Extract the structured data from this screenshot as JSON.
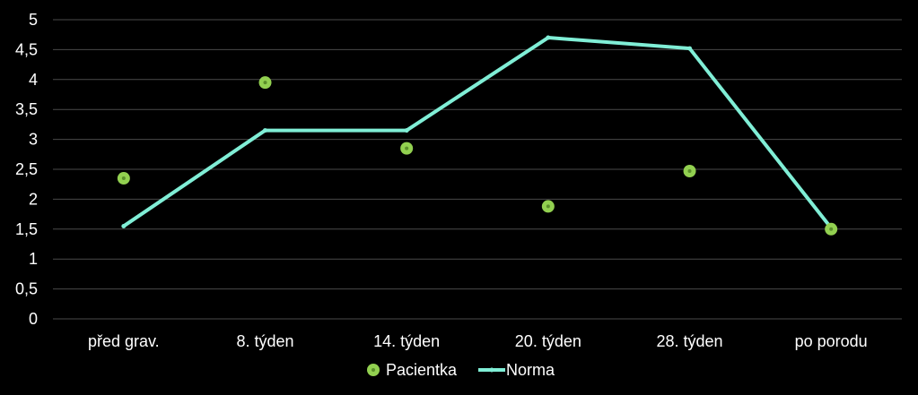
{
  "chart_data": {
    "type": "line",
    "categories": [
      "před grav.",
      "8. týden",
      "14. týden",
      "20. týden",
      "28. týden",
      "po porodu"
    ],
    "ylim": [
      0,
      5
    ],
    "y_ticks": [
      0,
      0.5,
      1,
      1.5,
      2,
      2.5,
      3,
      3.5,
      4,
      4.5,
      5
    ],
    "y_tick_labels": [
      "0",
      "0,5",
      "1",
      "1,5",
      "2",
      "2,5",
      "3",
      "3,5",
      "4",
      "4,5",
      "5"
    ],
    "grid": "horizontal",
    "legend_position": "bottom",
    "series": [
      {
        "name": "Pacientka",
        "kind": "markers",
        "color": "#92d050",
        "values": [
          2.35,
          3.95,
          2.85,
          1.88,
          2.47,
          1.5
        ]
      },
      {
        "name": "Norma",
        "kind": "line",
        "color": "#80eed6",
        "values": [
          1.55,
          3.15,
          3.15,
          4.7,
          4.52,
          1.52
        ]
      }
    ]
  },
  "colors": {
    "background": "#000000",
    "grid": "#4a4a4a",
    "text": "#ffffff"
  }
}
